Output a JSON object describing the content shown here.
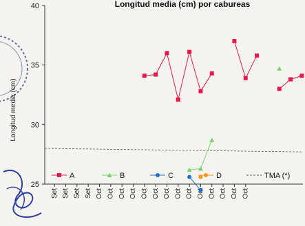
{
  "chart_data": {
    "type": "line",
    "title": "Longitud media (cm) por cabureas",
    "ylabel": "Longitud media (cm)",
    "xlabel": "",
    "ylim": [
      25,
      40
    ],
    "yticks": [
      25,
      30,
      35,
      40
    ],
    "categories": [
      "Set",
      "Set",
      "Set",
      "Set",
      "Oct",
      "Oct",
      "Oct",
      "Oct",
      "Oct",
      "Oct",
      "Oct",
      "Oct",
      "Oct",
      "Oct",
      "Oct",
      "Oct",
      "Oct",
      "Oct"
    ],
    "grid": false,
    "legend_position": "bottom",
    "series": [
      {
        "name": "A",
        "color": "#e8174a",
        "marker": "square",
        "segments": [
          [
            [
              8,
              34.1
            ],
            [
              9,
              34.2
            ],
            [
              10,
              36.0
            ],
            [
              11,
              32.1
            ],
            [
              12,
              36.1
            ],
            [
              13,
              32.8
            ],
            [
              14,
              34.3
            ]
          ],
          [
            [
              16,
              37.0
            ],
            [
              17,
              33.9
            ],
            [
              18,
              35.8
            ]
          ],
          [
            [
              20,
              33.0
            ],
            [
              21,
              33.8
            ],
            [
              22,
              34.1
            ]
          ]
        ]
      },
      {
        "name": "B",
        "color": "#7bd46a",
        "marker": "triangle",
        "segments": [
          [
            [
              12,
              26.2
            ],
            [
              13,
              26.3
            ],
            [
              14,
              28.7
            ]
          ],
          [
            [
              20,
              34.7
            ]
          ]
        ]
      },
      {
        "name": "C",
        "color": "#1f6fc5",
        "marker": "circle",
        "segments": [
          [
            [
              12,
              25.6
            ],
            [
              13,
              24.5
            ]
          ]
        ]
      },
      {
        "name": "D",
        "color": "#f39a1e",
        "marker": "circle",
        "segments": [
          [
            [
              13,
              25.6
            ]
          ]
        ]
      },
      {
        "name": "TMA (*)",
        "color": "#555555",
        "style": "dashed",
        "reference_line": [
          28.0,
          27.7
        ]
      }
    ]
  }
}
